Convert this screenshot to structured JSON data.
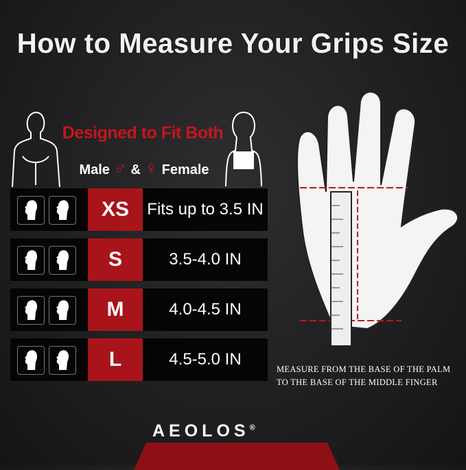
{
  "title": "How to Measure Your Grips Size",
  "designed": "Designed to Fit Both",
  "gender": {
    "male": "Male",
    "male_symbol": "♂",
    "and": "&",
    "female_symbol": "♀",
    "female": "Female"
  },
  "sizes": [
    {
      "size": "XS",
      "range": "Fits up to 3.5 IN"
    },
    {
      "size": "S",
      "range": "3.5-4.0 IN"
    },
    {
      "size": "M",
      "range": "4.0-4.5 IN"
    },
    {
      "size": "L",
      "range": "4.5-5.0 IN"
    }
  ],
  "measure": {
    "line1": "Measure from the base of the palm",
    "line2": "to the base of the middle finger"
  },
  "brand": {
    "name": "AEOLOS",
    "mark": "®"
  },
  "colors": {
    "accent": "#a8141a",
    "background": "#1c1c1e"
  }
}
